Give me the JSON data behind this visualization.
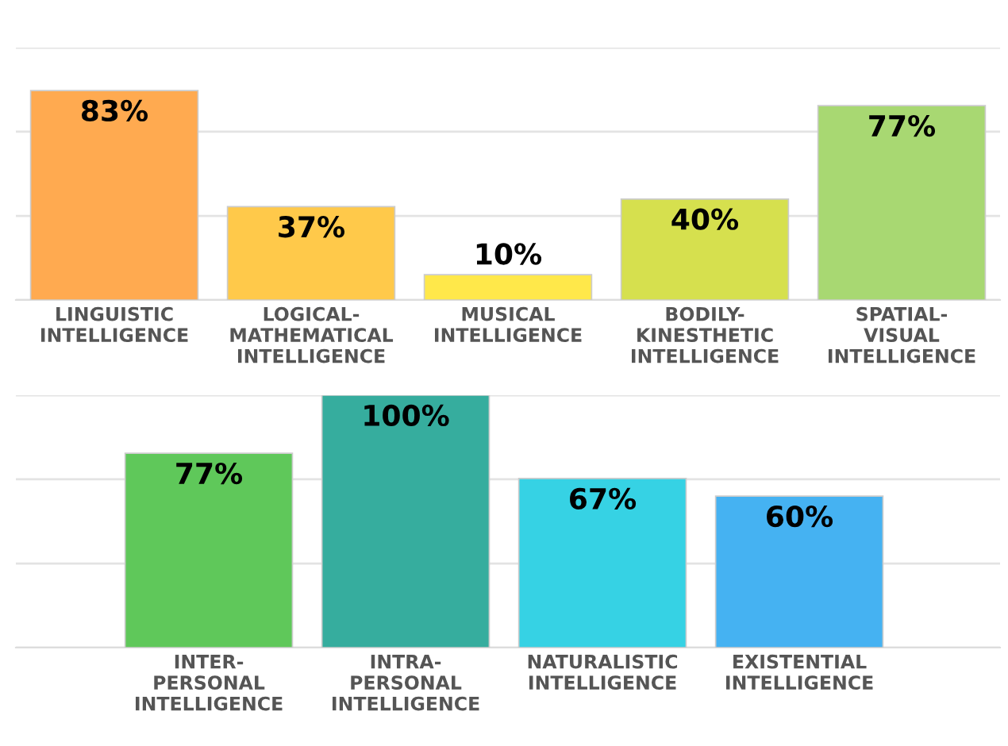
{
  "chart_data": [
    {
      "type": "bar",
      "categories": [
        "LINGUISTIC\nINTELLIGENCE",
        "LOGICAL-\nMATHEMATICAL\nINTELLIGENCE",
        "MUSICAL\nINTELLIGENCE",
        "BODILY-\nKINESTHETIC\nINTELLIGENCE",
        "SPATIAL-\nVISUAL\nINTELLIGENCE"
      ],
      "values": [
        83,
        37,
        10,
        40,
        77
      ],
      "value_labels": [
        "83%",
        "37%",
        "10%",
        "40%",
        "77%"
      ],
      "colors": [
        "#ffaa50",
        "#ffc94a",
        "#ffe84a",
        "#d6e04e",
        "#a8d872"
      ],
      "ylim": [
        0,
        100
      ],
      "yticks": [
        {
          "value": 0,
          "label": null
        },
        {
          "value": 33.3,
          "label": null
        },
        {
          "value": 66.7,
          "label": null
        },
        {
          "value": 100,
          "label": null
        }
      ],
      "grid": "y",
      "tick_labels": "x"
    },
    {
      "type": "bar",
      "categories": [
        "INTER-\nPERSONAL\nINTELLIGENCE",
        "INTRA-\nPERSONAL\nINTELLIGENCE",
        "NATURALISTIC\nINTELLIGENCE",
        "EXISTENTIAL\nINTELLIGENCE"
      ],
      "values": [
        77,
        100,
        67,
        60
      ],
      "value_labels": [
        "77%",
        "100%",
        "67%",
        "60%"
      ],
      "colors": [
        "#5fc85a",
        "#36ad9e",
        "#36d2e4",
        "#45b2f2"
      ],
      "ylim": [
        0,
        100
      ],
      "yticks": [
        {
          "value": 0,
          "label": null
        },
        {
          "value": 33.3,
          "label": null
        },
        {
          "value": 66.7,
          "label": null
        },
        {
          "value": 100,
          "label": null
        }
      ],
      "grid": "y",
      "tick_labels": "x"
    }
  ]
}
